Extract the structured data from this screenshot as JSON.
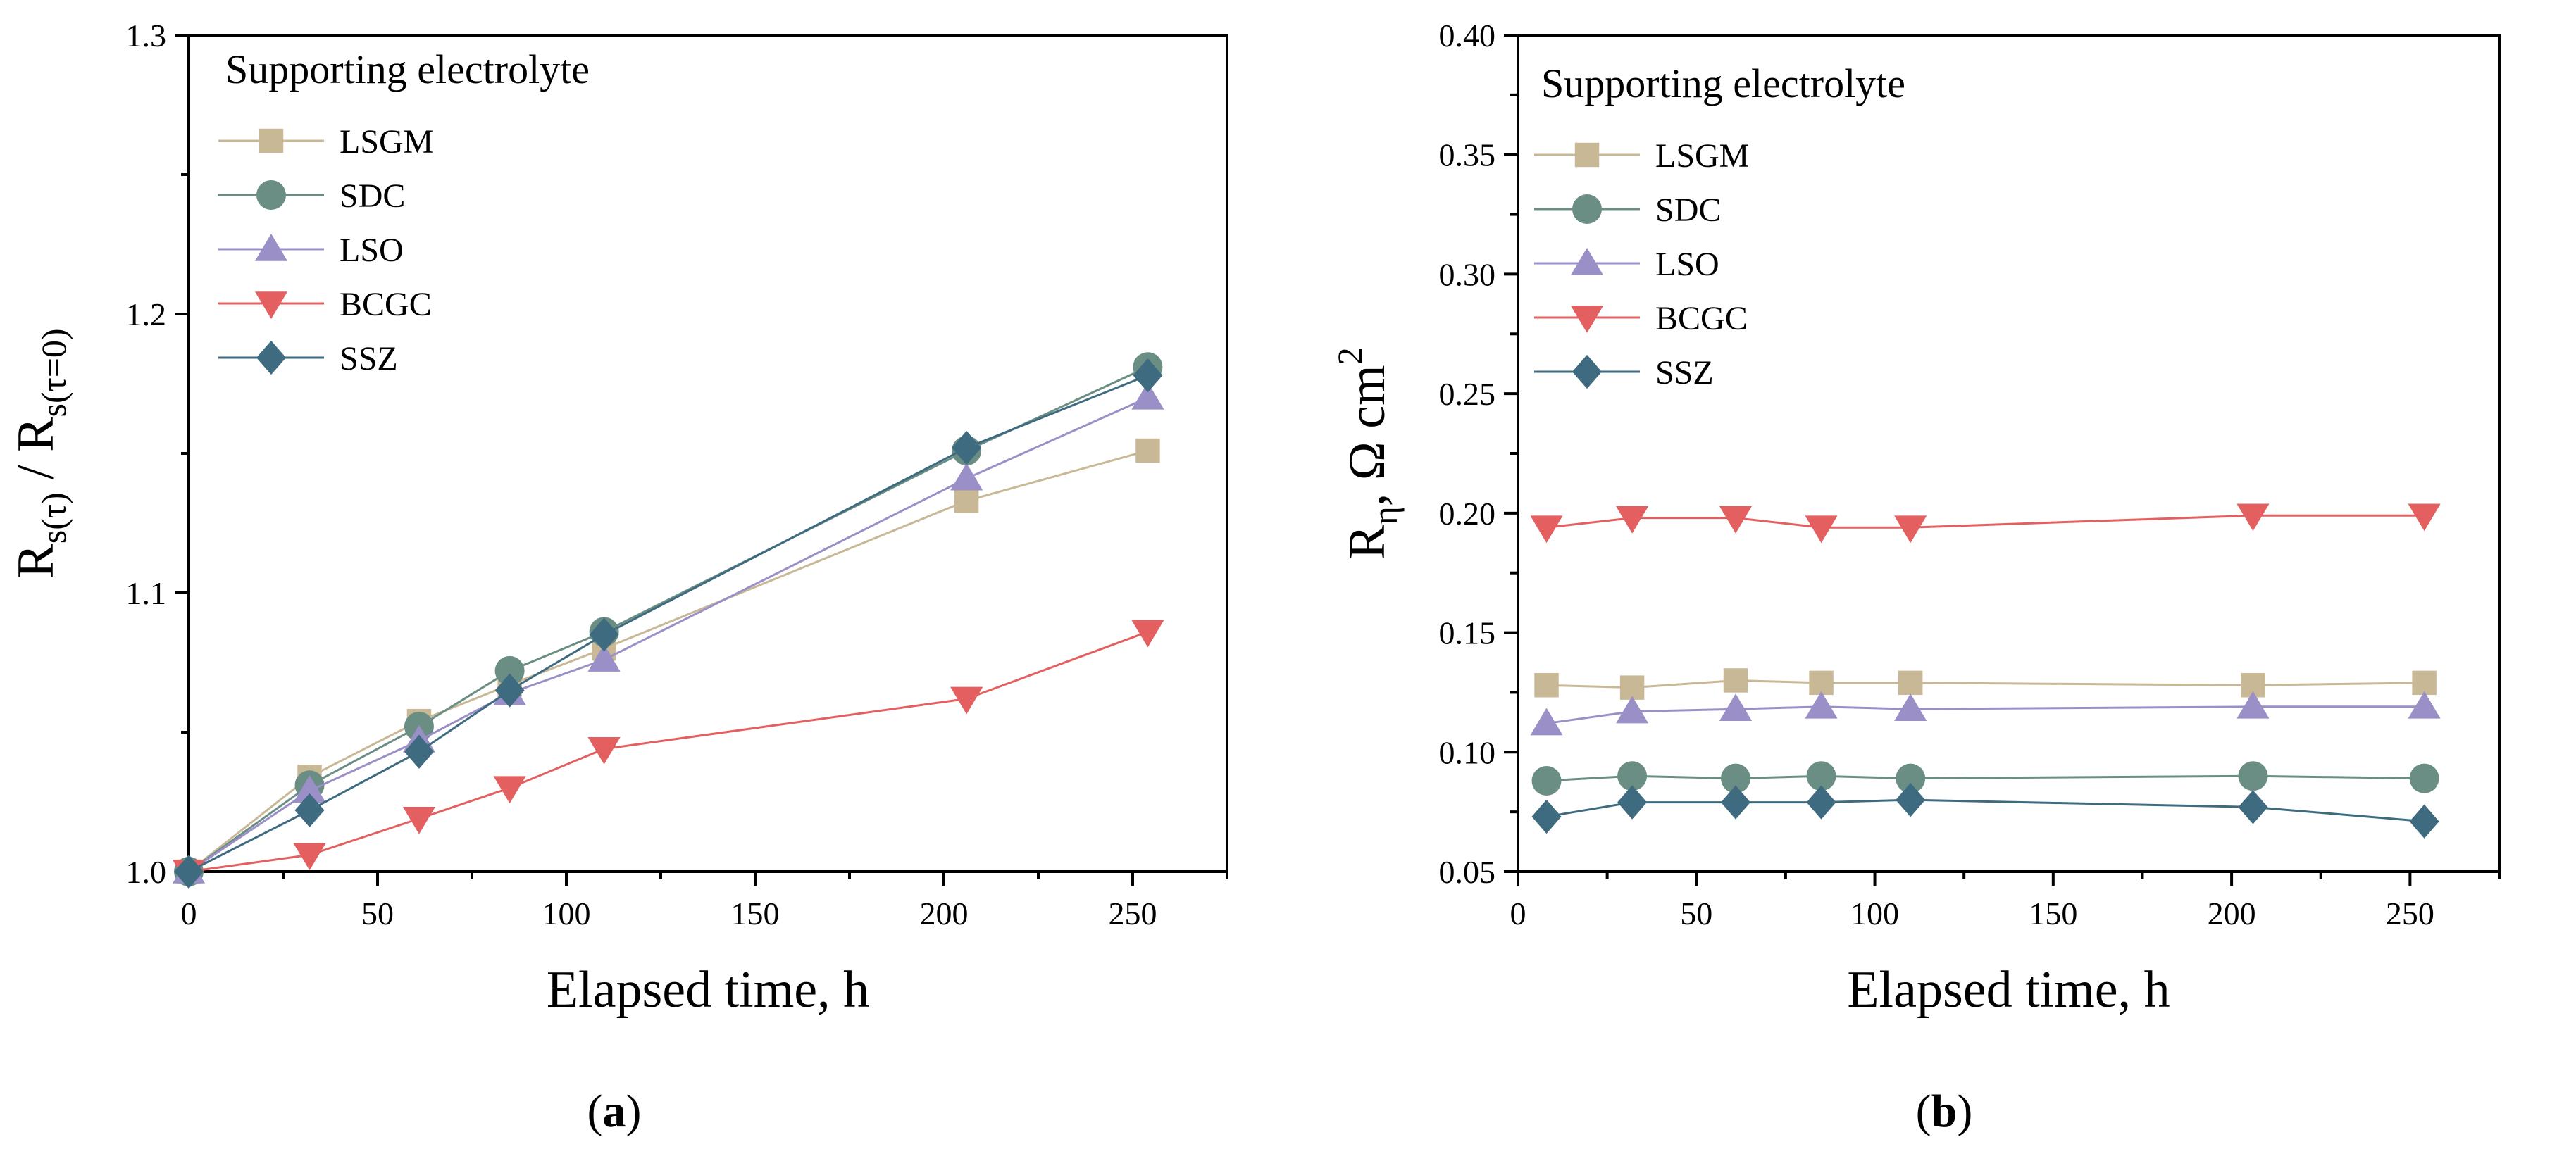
{
  "chart_data": [
    {
      "type": "line",
      "panel_label": "a",
      "xlabel": "Elapsed time, h",
      "ylabel": {
        "base": "R",
        "sub1": "s(τ)",
        "sep": " / R",
        "sub2": "s(τ=0)"
      },
      "xlim": [
        0,
        275
      ],
      "ylim": [
        1.0,
        1.3
      ],
      "xticks": [
        0,
        50,
        100,
        150,
        200,
        250
      ],
      "xtick_labels": [
        "0",
        "50",
        "100",
        "150",
        "200",
        "250"
      ],
      "yticks": [
        1.0,
        1.1,
        1.2,
        1.3
      ],
      "ytick_labels": [
        "1.0",
        "1.1",
        "1.2",
        "1.3"
      ],
      "legend": {
        "title": "Supporting electrolyte",
        "position": "top-left"
      },
      "series": [
        {
          "name": "LSGM",
          "marker": "square",
          "color": "#c8b896",
          "x": [
            0,
            32,
            61,
            85,
            110,
            206,
            254
          ],
          "y": [
            1.0,
            1.034,
            1.054,
            1.067,
            1.08,
            1.133,
            1.151
          ]
        },
        {
          "name": "SDC",
          "marker": "circle",
          "color": "#6a8e84",
          "x": [
            0,
            32,
            61,
            85,
            110,
            206,
            254
          ],
          "y": [
            1.0,
            1.031,
            1.052,
            1.072,
            1.086,
            1.151,
            1.181
          ]
        },
        {
          "name": "LSO",
          "marker": "triangle-up",
          "color": "#9b8fc8",
          "x": [
            0,
            32,
            61,
            85,
            110,
            206,
            254
          ],
          "y": [
            1.0,
            1.029,
            1.047,
            1.064,
            1.076,
            1.141,
            1.17
          ]
        },
        {
          "name": "BCGC",
          "marker": "triangle-down",
          "color": "#e45f5f",
          "x": [
            0,
            32,
            61,
            85,
            110,
            206,
            254
          ],
          "y": [
            1.0,
            1.006,
            1.019,
            1.03,
            1.044,
            1.062,
            1.086
          ]
        },
        {
          "name": "SSZ",
          "marker": "diamond",
          "color": "#3e6b80",
          "x": [
            0,
            32,
            61,
            85,
            110,
            206,
            254
          ],
          "y": [
            1.0,
            1.022,
            1.043,
            1.065,
            1.085,
            1.152,
            1.178
          ]
        }
      ]
    },
    {
      "type": "line",
      "panel_label": "b",
      "xlabel": "Elapsed time, h",
      "ylabel": {
        "base": "R",
        "sub1": "η",
        "sep": ", Ω cm",
        "sup": "2"
      },
      "xlim": [
        0,
        275
      ],
      "ylim": [
        0.05,
        0.4
      ],
      "xticks": [
        0,
        50,
        100,
        150,
        200,
        250
      ],
      "xtick_labels": [
        "0",
        "50",
        "100",
        "150",
        "200",
        "250"
      ],
      "yticks": [
        0.05,
        0.1,
        0.15,
        0.2,
        0.25,
        0.3,
        0.35,
        0.4
      ],
      "ytick_labels": [
        "0.05",
        "0.10",
        "0.15",
        "0.20",
        "0.25",
        "0.30",
        "0.35",
        "0.40"
      ],
      "legend": {
        "title": "Supporting electrolyte",
        "position": "top-left"
      },
      "series": [
        {
          "name": "LSGM",
          "marker": "square",
          "color": "#c8b896",
          "x": [
            8,
            32,
            61,
            85,
            110,
            206,
            254
          ],
          "y": [
            0.128,
            0.127,
            0.13,
            0.129,
            0.129,
            0.128,
            0.129
          ]
        },
        {
          "name": "SDC",
          "marker": "circle",
          "color": "#6a8e84",
          "x": [
            8,
            32,
            61,
            85,
            110,
            206,
            254
          ],
          "y": [
            0.088,
            0.09,
            0.089,
            0.09,
            0.089,
            0.09,
            0.089
          ]
        },
        {
          "name": "LSO",
          "marker": "triangle-up",
          "color": "#9b8fc8",
          "x": [
            8,
            32,
            61,
            85,
            110,
            206,
            254
          ],
          "y": [
            0.112,
            0.117,
            0.118,
            0.119,
            0.118,
            0.119,
            0.119
          ]
        },
        {
          "name": "BCGC",
          "marker": "triangle-down",
          "color": "#e45f5f",
          "x": [
            8,
            32,
            61,
            85,
            110,
            206,
            254
          ],
          "y": [
            0.194,
            0.198,
            0.198,
            0.194,
            0.194,
            0.199,
            0.199
          ]
        },
        {
          "name": "SSZ",
          "marker": "diamond",
          "color": "#3e6b80",
          "x": [
            8,
            32,
            61,
            85,
            110,
            206,
            254
          ],
          "y": [
            0.073,
            0.079,
            0.079,
            0.079,
            0.08,
            0.077,
            0.071
          ]
        }
      ]
    }
  ]
}
